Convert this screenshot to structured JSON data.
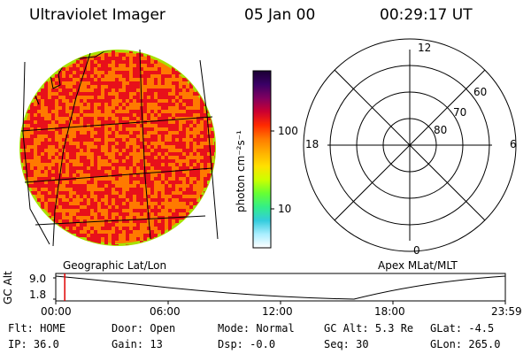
{
  "header": {
    "title": "Ultraviolet Imager",
    "date": "05 Jan 00",
    "time": "00:29:17 UT"
  },
  "colorbar": {
    "unit_label": "photon cm⁻²s⁻¹",
    "ticks": [
      "100",
      "10"
    ],
    "gradient": [
      "#1a0033",
      "#3a0066",
      "#800060",
      "#cc0030",
      "#ff2a00",
      "#ff7a00",
      "#ffb000",
      "#ffe000",
      "#ccff00",
      "#66ff33",
      "#33ee88",
      "#33ccdd",
      "#aaeeff",
      "#ffffff"
    ]
  },
  "left_panel": {
    "caption": "Geographic Lat/Lon"
  },
  "right_panel": {
    "caption": "Apex MLat/MLT",
    "mlt_labels": {
      "top": "12",
      "left": "18",
      "right": "6",
      "bottom": "0"
    },
    "lat_labels": [
      "60",
      "70",
      "80"
    ]
  },
  "timeline": {
    "ylabel": "GC Alt",
    "y_ticks": [
      "9.0",
      "1.8"
    ],
    "x_ticks": [
      "00:00",
      "06:00",
      "12:00",
      "18:00",
      "23:59"
    ],
    "current_fraction": 0.02
  },
  "status": {
    "row1": [
      {
        "key": "Flt:",
        "value": "HOME"
      },
      {
        "key": "Door:",
        "value": "Open"
      },
      {
        "key": "Mode:",
        "value": "Normal"
      },
      {
        "key": "GC Alt:",
        "value": "5.3 Re"
      },
      {
        "key": "GLat:",
        "value": "-4.5"
      }
    ],
    "row2": [
      {
        "key": "IP:",
        "value": "36.0"
      },
      {
        "key": "Gain:",
        "value": "13"
      },
      {
        "key": "Dsp:",
        "value": "-0.0"
      },
      {
        "key": "Seq:",
        "value": "30"
      },
      {
        "key": "GLon:",
        "value": "265.0"
      }
    ]
  },
  "colors": {
    "image_base": "#ff7a00",
    "image_hot": "#e8101a",
    "limb": "#a8e000",
    "marker": "#e00000"
  }
}
